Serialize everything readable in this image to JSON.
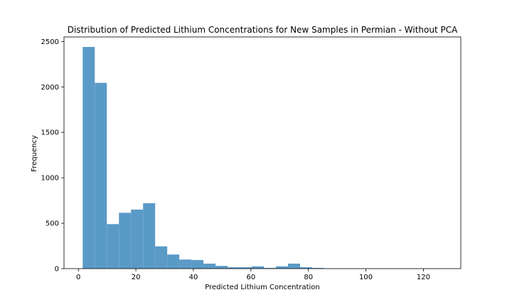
{
  "chart_data": {
    "type": "bar",
    "title": "Distribution of Predicted Lithium Concentrations for New Samples in Permian - Without PCA",
    "xlabel": "Predicted Lithium Concentration",
    "ylabel": "Frequency",
    "xlim": [
      -5,
      133
    ],
    "ylim": [
      0,
      2550
    ],
    "xticks": [
      0,
      20,
      40,
      60,
      80,
      100,
      120
    ],
    "yticks": [
      0,
      500,
      1000,
      1500,
      2000,
      2500
    ],
    "grid": false,
    "bar_color": "#5a9ac7",
    "bins": [
      {
        "x0": 1.5,
        "x1": 5.7,
        "value": 2440
      },
      {
        "x0": 5.7,
        "x1": 9.9,
        "value": 2045
      },
      {
        "x0": 9.9,
        "x1": 14.1,
        "value": 490
      },
      {
        "x0": 14.1,
        "x1": 18.3,
        "value": 615
      },
      {
        "x0": 18.3,
        "x1": 22.5,
        "value": 650
      },
      {
        "x0": 22.5,
        "x1": 26.7,
        "value": 720
      },
      {
        "x0": 26.7,
        "x1": 30.9,
        "value": 245
      },
      {
        "x0": 30.9,
        "x1": 35.1,
        "value": 155
      },
      {
        "x0": 35.1,
        "x1": 39.3,
        "value": 100
      },
      {
        "x0": 39.3,
        "x1": 43.5,
        "value": 95
      },
      {
        "x0": 43.5,
        "x1": 47.7,
        "value": 55
      },
      {
        "x0": 47.7,
        "x1": 51.9,
        "value": 30
      },
      {
        "x0": 51.9,
        "x1": 56.1,
        "value": 15
      },
      {
        "x0": 56.1,
        "x1": 60.3,
        "value": 15
      },
      {
        "x0": 60.3,
        "x1": 64.5,
        "value": 25
      },
      {
        "x0": 64.5,
        "x1": 68.7,
        "value": 8
      },
      {
        "x0": 68.7,
        "x1": 72.9,
        "value": 25
      },
      {
        "x0": 72.9,
        "x1": 77.1,
        "value": 55
      },
      {
        "x0": 77.1,
        "x1": 81.3,
        "value": 15
      },
      {
        "x0": 81.3,
        "x1": 85.5,
        "value": 8
      },
      {
        "x0": 85.5,
        "x1": 89.7,
        "value": 2
      },
      {
        "x0": 89.7,
        "x1": 93.9,
        "value": 2
      },
      {
        "x0": 93.9,
        "x1": 98.1,
        "value": 1
      },
      {
        "x0": 98.1,
        "x1": 102.3,
        "value": 1
      },
      {
        "x0": 102.3,
        "x1": 106.5,
        "value": 1
      },
      {
        "x0": 106.5,
        "x1": 110.7,
        "value": 1
      },
      {
        "x0": 110.7,
        "x1": 114.9,
        "value": 1
      },
      {
        "x0": 114.9,
        "x1": 119.1,
        "value": 1
      },
      {
        "x0": 119.1,
        "x1": 123.3,
        "value": 1
      },
      {
        "x0": 123.3,
        "x1": 127.5,
        "value": 1
      }
    ]
  }
}
